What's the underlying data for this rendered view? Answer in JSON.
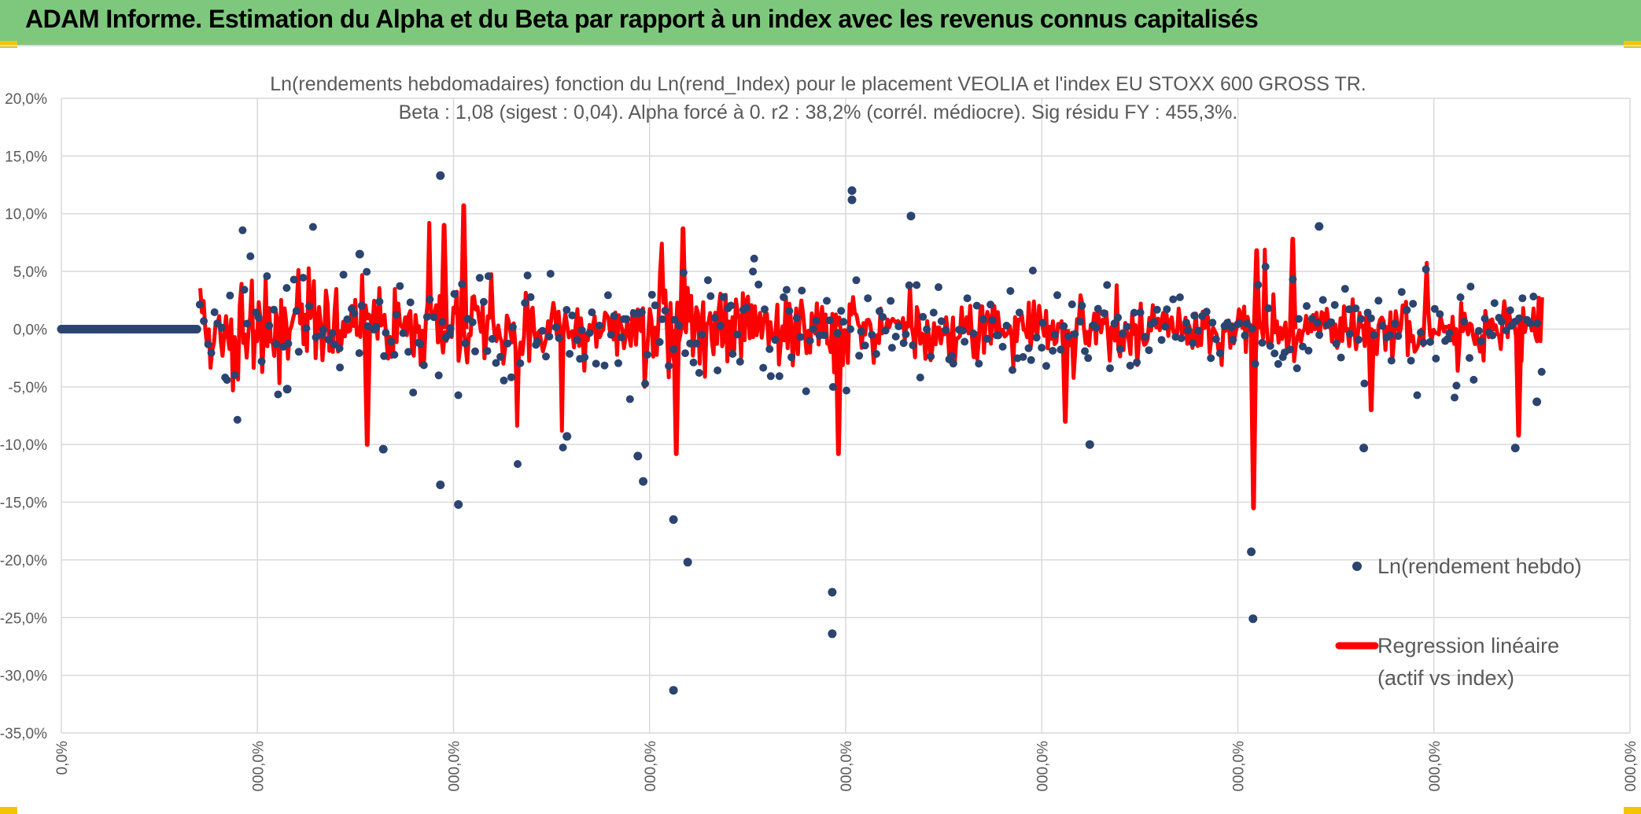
{
  "header": {
    "title": "ADAM Informe. Estimation du Alpha et du Beta par rapport à un index avec les revenus connus capitalisés",
    "background": "#7ec87e"
  },
  "chart_data": {
    "type": "scatter",
    "title_line1": "Ln(rendements hebdomadaires) fonction du Ln(rend_Index) pour le placement VEOLIA et l'index EU STOXX 600 GROSS TR.",
    "title_line2": "Beta : 1,08 (sigest : 0,04). Alpha forcé à 0. r2 : 38,2% (corrél. médiocre). Sig résidu FY : 455,3%.",
    "beta": 1.08,
    "ylim": [
      -35,
      20
    ],
    "y_ticks": [
      "20,0%",
      "15,0%",
      "10,0%",
      "5,0%",
      "0,0%",
      "-5,0%",
      "-10,0%",
      "-15,0%",
      "-20,0%",
      "-25,0%",
      "-30,0%",
      "-35,0%"
    ],
    "x_ticks": [
      "0,0%",
      "000,0%",
      "000,0%",
      "000,0%",
      "000,0%",
      "000,0%",
      "000,0%",
      "000,0%",
      "000,0%"
    ],
    "grid": true,
    "series": [
      {
        "name": "Ln(rendement hebdo)",
        "kind": "scatter",
        "color": "#2b4470"
      },
      {
        "name": "Regression linéaire (actif vs index)",
        "kind": "line",
        "color": "#ff0000"
      }
    ],
    "legend": {
      "scatter_label": "Ln(rendement hebdo)",
      "line_label_1": "Regression linéaire",
      "line_label_2": "(actif vs index)",
      "position": "right"
    },
    "notable_points": [
      {
        "x": 0.2416,
        "y": 13.3
      },
      {
        "x": 0.2416,
        "y": -13.5
      },
      {
        "x": 0.2531,
        "y": -15.2
      },
      {
        "x": 0.3675,
        "y": -11.0
      },
      {
        "x": 0.3709,
        "y": -13.2
      },
      {
        "x": 0.3902,
        "y": -16.5
      },
      {
        "x": 0.3993,
        "y": -20.2
      },
      {
        "x": 0.3902,
        "y": -31.3
      },
      {
        "x": 0.4914,
        "y": -22.8
      },
      {
        "x": 0.4914,
        "y": -26.4
      },
      {
        "x": 0.504,
        "y": 12.0
      },
      {
        "x": 0.504,
        "y": 11.2
      },
      {
        "x": 0.5416,
        "y": 9.8
      },
      {
        "x": 0.6556,
        "y": -10.0
      },
      {
        "x": 0.7586,
        "y": -19.3
      },
      {
        "x": 0.7597,
        "y": -25.1
      },
      {
        "x": 0.8303,
        "y": -10.3
      },
      {
        "x": 0.9269,
        "y": -10.3
      },
      {
        "x": 0.9406,
        "y": -6.3
      },
      {
        "x": 0.8018,
        "y": 8.9
      },
      {
        "x": 0.1902,
        "y": 6.5
      },
      {
        "x": 0.144,
        "y": -5.2
      },
      {
        "x": 0.2052,
        "y": -10.4
      },
      {
        "x": 0.3223,
        "y": -9.3
      }
    ],
    "regression_spikes": [
      {
        "x": 0.2565,
        "y": 10.7
      },
      {
        "x": 0.244,
        "y": 9.0
      },
      {
        "x": 0.195,
        "y": -10.0
      },
      {
        "x": 0.3963,
        "y": 8.7
      },
      {
        "x": 0.392,
        "y": -10.8
      },
      {
        "x": 0.4954,
        "y": -10.8
      },
      {
        "x": 0.76,
        "y": -15.5
      },
      {
        "x": 0.762,
        "y": 6.8
      },
      {
        "x": 0.785,
        "y": 7.8
      },
      {
        "x": 0.64,
        "y": -8.0
      },
      {
        "x": 0.929,
        "y": -9.2
      },
      {
        "x": 0.835,
        "y": -7.0
      }
    ]
  }
}
